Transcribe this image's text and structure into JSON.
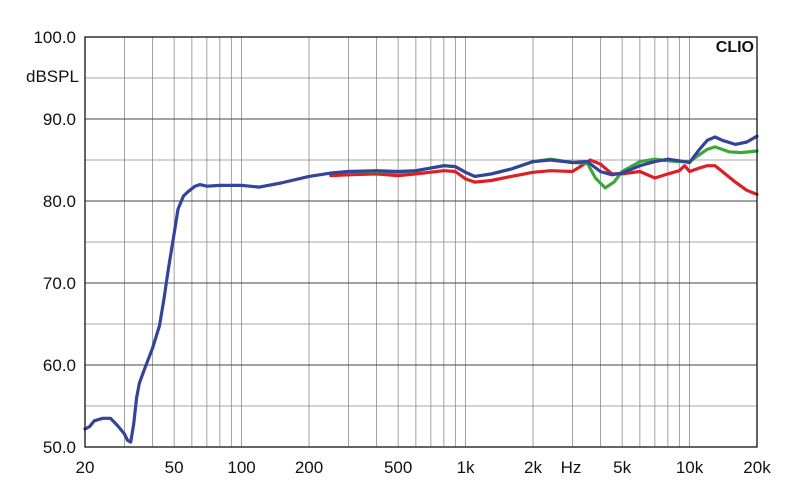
{
  "chart_data": {
    "type": "line",
    "brand": "CLIO",
    "ylabel": "dBSPL",
    "xunit": "Hz",
    "x_scale": "log",
    "xlim": [
      20,
      20000
    ],
    "ylim": [
      50,
      100
    ],
    "grid": true,
    "y_ticks": [
      {
        "value": 50,
        "label": "50.0"
      },
      {
        "value": 60,
        "label": "60.0"
      },
      {
        "value": 70,
        "label": "70.0"
      },
      {
        "value": 80,
        "label": "80.0"
      },
      {
        "value": 90,
        "label": "90.0"
      },
      {
        "value": 100,
        "label": "100.0"
      }
    ],
    "x_ticks": [
      {
        "value": 20,
        "label": "20"
      },
      {
        "value": 50,
        "label": "50"
      },
      {
        "value": 100,
        "label": "100"
      },
      {
        "value": 200,
        "label": "200"
      },
      {
        "value": 500,
        "label": "500"
      },
      {
        "value": 1000,
        "label": "1k"
      },
      {
        "value": 2000,
        "label": "2k"
      },
      {
        "value": 5000,
        "label": "5k"
      },
      {
        "value": 10000,
        "label": "10k"
      },
      {
        "value": 20000,
        "label": "20k"
      }
    ],
    "series": [
      {
        "color": "#dd1f26",
        "points": [
          [
            250,
            83.1
          ],
          [
            300,
            83.2
          ],
          [
            400,
            83.3
          ],
          [
            500,
            83.1
          ],
          [
            600,
            83.3
          ],
          [
            800,
            83.7
          ],
          [
            900,
            83.6
          ],
          [
            1000,
            82.7
          ],
          [
            1100,
            82.3
          ],
          [
            1300,
            82.5
          ],
          [
            1600,
            83.0
          ],
          [
            2000,
            83.5
          ],
          [
            2400,
            83.7
          ],
          [
            3000,
            83.6
          ],
          [
            3300,
            84.3
          ],
          [
            3600,
            85.0
          ],
          [
            4000,
            84.5
          ],
          [
            4500,
            83.3
          ],
          [
            5000,
            83.3
          ],
          [
            6000,
            83.6
          ],
          [
            7000,
            82.8
          ],
          [
            8000,
            83.3
          ],
          [
            9000,
            83.7
          ],
          [
            9500,
            84.3
          ],
          [
            10000,
            83.6
          ],
          [
            11000,
            84.0
          ],
          [
            12000,
            84.3
          ],
          [
            13000,
            84.3
          ],
          [
            14000,
            83.6
          ],
          [
            16000,
            82.3
          ],
          [
            18000,
            81.3
          ],
          [
            20000,
            80.8
          ]
        ]
      },
      {
        "color": "#3fa63b",
        "points": [
          [
            250,
            83.4
          ],
          [
            300,
            83.6
          ],
          [
            400,
            83.6
          ],
          [
            500,
            83.5
          ],
          [
            600,
            83.7
          ],
          [
            800,
            84.3
          ],
          [
            900,
            84.2
          ],
          [
            1000,
            83.5
          ],
          [
            1100,
            83.0
          ],
          [
            1300,
            83.3
          ],
          [
            1600,
            83.9
          ],
          [
            2000,
            84.8
          ],
          [
            2400,
            85.1
          ],
          [
            3000,
            84.7
          ],
          [
            3500,
            84.6
          ],
          [
            3800,
            82.8
          ],
          [
            4200,
            81.6
          ],
          [
            4600,
            82.3
          ],
          [
            5000,
            83.6
          ],
          [
            6000,
            84.8
          ],
          [
            7000,
            85.1
          ],
          [
            8000,
            84.9
          ],
          [
            9000,
            84.8
          ],
          [
            10000,
            84.8
          ],
          [
            11000,
            85.6
          ],
          [
            12000,
            86.3
          ],
          [
            13000,
            86.6
          ],
          [
            15000,
            86.0
          ],
          [
            17000,
            85.9
          ],
          [
            20000,
            86.1
          ]
        ]
      },
      {
        "color": "#33449a",
        "points": [
          [
            20,
            52.2
          ],
          [
            21,
            52.5
          ],
          [
            22,
            53.2
          ],
          [
            24,
            53.5
          ],
          [
            26,
            53.5
          ],
          [
            28,
            52.6
          ],
          [
            30,
            51.6
          ],
          [
            31,
            50.8
          ],
          [
            32,
            50.6
          ],
          [
            33,
            52.8
          ],
          [
            34,
            56.0
          ],
          [
            35,
            57.8
          ],
          [
            37,
            59.6
          ],
          [
            40,
            62.0
          ],
          [
            43,
            64.8
          ],
          [
            45,
            68.0
          ],
          [
            47,
            71.5
          ],
          [
            50,
            76.0
          ],
          [
            52,
            79.0
          ],
          [
            55,
            80.6
          ],
          [
            58,
            81.2
          ],
          [
            62,
            81.8
          ],
          [
            65,
            82.0
          ],
          [
            70,
            81.8
          ],
          [
            80,
            81.9
          ],
          [
            100,
            81.9
          ],
          [
            120,
            81.7
          ],
          [
            150,
            82.2
          ],
          [
            200,
            83.0
          ],
          [
            250,
            83.4
          ],
          [
            300,
            83.6
          ],
          [
            400,
            83.7
          ],
          [
            500,
            83.6
          ],
          [
            600,
            83.7
          ],
          [
            800,
            84.3
          ],
          [
            900,
            84.2
          ],
          [
            1000,
            83.5
          ],
          [
            1100,
            83.0
          ],
          [
            1300,
            83.3
          ],
          [
            1600,
            83.9
          ],
          [
            2000,
            84.8
          ],
          [
            2400,
            85.0
          ],
          [
            3000,
            84.7
          ],
          [
            3500,
            84.8
          ],
          [
            4000,
            83.6
          ],
          [
            4500,
            83.2
          ],
          [
            5000,
            83.4
          ],
          [
            6000,
            84.3
          ],
          [
            7000,
            84.8
          ],
          [
            8000,
            85.1
          ],
          [
            9000,
            84.9
          ],
          [
            10000,
            84.7
          ],
          [
            11000,
            86.2
          ],
          [
            12000,
            87.4
          ],
          [
            13000,
            87.8
          ],
          [
            14000,
            87.4
          ],
          [
            16000,
            86.9
          ],
          [
            18000,
            87.2
          ],
          [
            20000,
            87.9
          ]
        ]
      }
    ]
  }
}
